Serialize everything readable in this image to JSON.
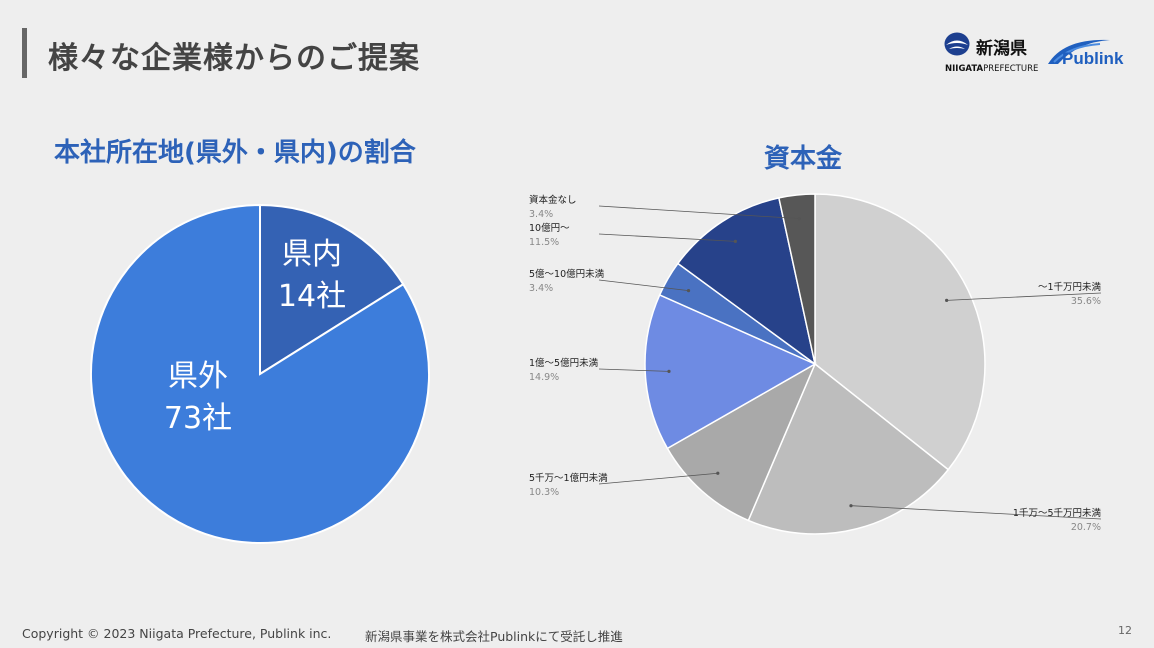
{
  "slide": {
    "title": "様々な企業様からのご提案",
    "page_number": "12"
  },
  "logos": {
    "niigata_kanji": "新潟県",
    "niigata_sub_bold": "NIIGATA",
    "niigata_sub_rest": "PREFECTURE",
    "publink": "Publink"
  },
  "footer": {
    "copyright": "Copyright © 2023 Niigata Prefecture, Publink inc.",
    "note": "新潟県事業を株式会社Publinkにて受託し推進"
  },
  "chart_data": [
    {
      "type": "pie",
      "title": "本社所在地(県外・県内)の割合",
      "categories": [
        "県内",
        "県外"
      ],
      "values": [
        14,
        73
      ],
      "unit": "社",
      "data_labels": [
        {
          "name": "県内",
          "value": "14社"
        },
        {
          "name": "県外",
          "value": "73社"
        }
      ],
      "colors": [
        "#3462b4",
        "#3d7ddb"
      ]
    },
    {
      "type": "pie",
      "title": "資本金",
      "categories": [
        "〜1千万円未満",
        "1千万〜5千万円未満",
        "5千万〜1億円未満",
        "1億〜5億円未満",
        "5億〜10億円未満",
        "10億円〜",
        "資本金なし"
      ],
      "values": [
        35.6,
        20.7,
        10.3,
        14.9,
        3.4,
        11.5,
        3.4
      ],
      "labels": [
        "35.6%",
        "20.7%",
        "10.3%",
        "14.9%",
        "3.4%",
        "11.5%",
        "3.4%"
      ],
      "colors": [
        "#d0d0d0",
        "#bdbdbd",
        "#a9a9a9",
        "#6e8be3",
        "#4a72c2",
        "#27428a",
        "#575757"
      ]
    }
  ]
}
